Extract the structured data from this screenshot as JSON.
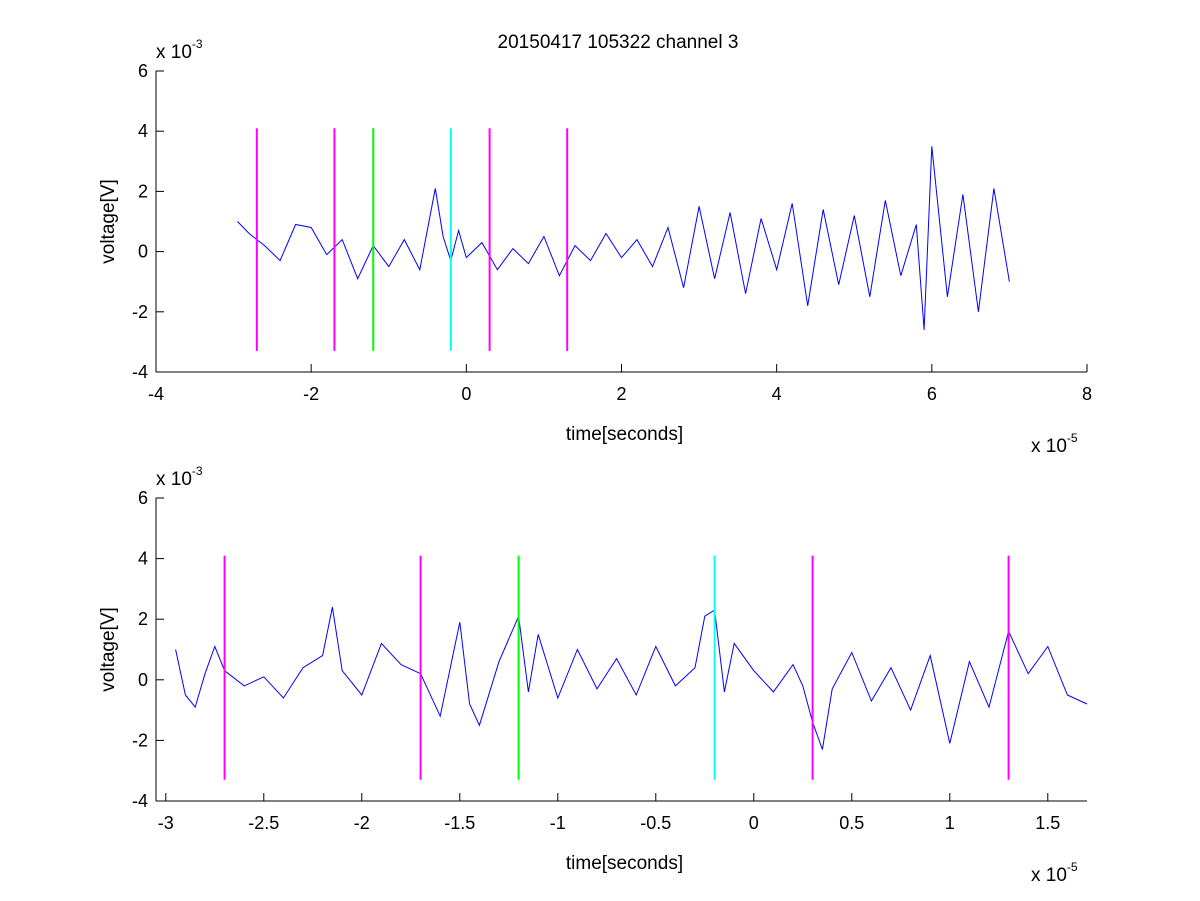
{
  "figure": {
    "title": "20150417 105322 channel 3"
  },
  "chart_data": [
    {
      "type": "line",
      "title": "20150417 105322 channel 3",
      "xlabel": "time[seconds]",
      "ylabel": "voltage[V]",
      "x_exponent": {
        "base": "x 10",
        "power": "-5"
      },
      "y_exponent": {
        "base": "x 10",
        "power": "-3"
      },
      "xlim": [
        -4,
        8
      ],
      "ylim": [
        -4,
        6
      ],
      "xticks": [
        -4,
        -2,
        0,
        2,
        4,
        6,
        8
      ],
      "xtick_labels": [
        "-4",
        "-2",
        "0",
        "2",
        "4",
        "6",
        "8"
      ],
      "yticks": [
        -4,
        -2,
        0,
        2,
        4,
        6
      ],
      "ytick_labels": [
        "-4",
        "-2",
        "0",
        "2",
        "4",
        "6"
      ],
      "grid": false,
      "series": [
        {
          "color": "#0000ff",
          "x": [
            -2.95,
            -2.8,
            -2.6,
            -2.4,
            -2.2,
            -2.0,
            -1.8,
            -1.6,
            -1.4,
            -1.2,
            -1.0,
            -0.8,
            -0.6,
            -0.4,
            -0.3,
            -0.2,
            -0.1,
            0.0,
            0.2,
            0.4,
            0.6,
            0.8,
            1.0,
            1.2,
            1.4,
            1.6,
            1.8,
            2.0,
            2.2,
            2.4,
            2.6,
            2.8,
            3.0,
            3.2,
            3.4,
            3.6,
            3.8,
            4.0,
            4.2,
            4.4,
            4.6,
            4.8,
            5.0,
            5.2,
            5.4,
            5.6,
            5.8,
            5.9,
            6.0,
            6.2,
            6.4,
            6.6,
            6.8,
            7.0
          ],
          "y": [
            1.0,
            0.6,
            0.2,
            -0.3,
            0.9,
            0.8,
            -0.1,
            0.4,
            -0.9,
            0.2,
            -0.5,
            0.4,
            -0.6,
            2.1,
            0.5,
            -0.3,
            0.7,
            -0.2,
            0.3,
            -0.6,
            0.1,
            -0.4,
            0.5,
            -0.8,
            0.2,
            -0.3,
            0.6,
            -0.2,
            0.4,
            -0.5,
            0.8,
            -1.2,
            1.5,
            -0.9,
            1.3,
            -1.4,
            1.1,
            -0.6,
            1.6,
            -1.8,
            1.4,
            -1.1,
            1.2,
            -1.5,
            1.7,
            -0.8,
            0.9,
            -2.6,
            3.5,
            -1.5,
            1.9,
            -2.0,
            2.1,
            -1.0
          ]
        }
      ],
      "markers": [
        {
          "x": -2.7,
          "color": "#ff00ff",
          "y_range": [
            -3.3,
            4.1
          ]
        },
        {
          "x": -1.7,
          "color": "#ff00ff",
          "y_range": [
            -3.3,
            4.1
          ]
        },
        {
          "x": -1.2,
          "color": "#00ff00",
          "y_range": [
            -3.3,
            4.1
          ]
        },
        {
          "x": -0.2,
          "color": "#00ffff",
          "y_range": [
            -3.3,
            4.1
          ]
        },
        {
          "x": 0.3,
          "color": "#ff00ff",
          "y_range": [
            -3.3,
            4.1
          ]
        },
        {
          "x": 1.3,
          "color": "#ff00ff",
          "y_range": [
            -3.3,
            4.1
          ]
        }
      ]
    },
    {
      "type": "line",
      "title": "",
      "xlabel": "time[seconds]",
      "ylabel": "voltage[V]",
      "x_exponent": {
        "base": "x 10",
        "power": "-5"
      },
      "y_exponent": {
        "base": "x 10",
        "power": "-3"
      },
      "xlim": [
        -3.05,
        1.7
      ],
      "ylim": [
        -4,
        6
      ],
      "xticks": [
        -3,
        -2.5,
        -2,
        -1.5,
        -1,
        -0.5,
        0,
        0.5,
        1,
        1.5
      ],
      "xtick_labels": [
        "-3",
        "-2.5",
        "-2",
        "-1.5",
        "-1",
        "-0.5",
        "0",
        "0.5",
        "1",
        "1.5"
      ],
      "yticks": [
        -4,
        -2,
        0,
        2,
        4,
        6
      ],
      "ytick_labels": [
        "-4",
        "-2",
        "0",
        "2",
        "4",
        "6"
      ],
      "grid": false,
      "series": [
        {
          "color": "#0000ff",
          "x": [
            -2.95,
            -2.9,
            -2.85,
            -2.8,
            -2.75,
            -2.7,
            -2.6,
            -2.5,
            -2.4,
            -2.3,
            -2.2,
            -2.15,
            -2.1,
            -2.0,
            -1.9,
            -1.8,
            -1.7,
            -1.6,
            -1.5,
            -1.45,
            -1.4,
            -1.3,
            -1.2,
            -1.15,
            -1.1,
            -1.0,
            -0.9,
            -0.8,
            -0.7,
            -0.6,
            -0.5,
            -0.4,
            -0.3,
            -0.25,
            -0.2,
            -0.15,
            -0.1,
            0.0,
            0.1,
            0.2,
            0.25,
            0.3,
            0.35,
            0.4,
            0.5,
            0.6,
            0.7,
            0.8,
            0.9,
            1.0,
            1.1,
            1.2,
            1.3,
            1.4,
            1.5,
            1.6,
            1.7
          ],
          "y": [
            1.0,
            -0.5,
            -0.9,
            0.2,
            1.1,
            0.3,
            -0.2,
            0.1,
            -0.6,
            0.4,
            0.8,
            2.4,
            0.3,
            -0.5,
            1.2,
            0.5,
            0.2,
            -1.2,
            1.9,
            -0.8,
            -1.5,
            0.6,
            2.1,
            -0.4,
            1.5,
            -0.6,
            1.0,
            -0.3,
            0.7,
            -0.5,
            1.1,
            -0.2,
            0.4,
            2.1,
            2.3,
            -0.4,
            1.2,
            0.3,
            -0.4,
            0.5,
            -0.2,
            -1.4,
            -2.3,
            -0.3,
            0.9,
            -0.7,
            0.4,
            -1.0,
            0.8,
            -2.1,
            0.6,
            -0.9,
            1.6,
            0.2,
            1.1,
            -0.5,
            -0.8
          ]
        }
      ],
      "markers": [
        {
          "x": -2.7,
          "color": "#ff00ff",
          "y_range": [
            -3.3,
            4.1
          ]
        },
        {
          "x": -1.7,
          "color": "#ff00ff",
          "y_range": [
            -3.3,
            4.1
          ]
        },
        {
          "x": -1.2,
          "color": "#00ff00",
          "y_range": [
            -3.3,
            4.1
          ]
        },
        {
          "x": -0.2,
          "color": "#00ffff",
          "y_range": [
            -3.3,
            4.1
          ]
        },
        {
          "x": 0.3,
          "color": "#ff00ff",
          "y_range": [
            -3.3,
            4.1
          ]
        },
        {
          "x": 1.3,
          "color": "#ff00ff",
          "y_range": [
            -3.3,
            4.1
          ]
        }
      ]
    }
  ]
}
